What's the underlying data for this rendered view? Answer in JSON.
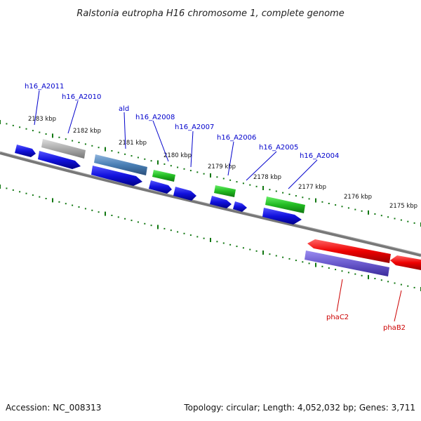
{
  "title": "Ralstonia eutropha H16 chromosome 1, complete genome",
  "footer": {
    "accession": "Accession: NC_008313",
    "topology": "Topology: circular; Length: 4,052,032 bp; Genes: 3,711"
  },
  "kbp_labels": [
    "2183 kbp",
    "2182 kbp",
    "2181 kbp",
    "2180 kbp",
    "2179 kbp",
    "2178 kbp",
    "2177 kbp",
    "2176 kbp",
    "2175 kbp"
  ],
  "gene_labels": [
    {
      "name": "h16_A2011",
      "color": "#0000cc"
    },
    {
      "name": "h16_A2010",
      "color": "#0000cc"
    },
    {
      "name": "ald",
      "color": "#0000cc"
    },
    {
      "name": "h16_A2008",
      "color": "#0000cc"
    },
    {
      "name": "h16_A2007",
      "color": "#0000cc"
    },
    {
      "name": "h16_A2006",
      "color": "#0000cc"
    },
    {
      "name": "h16_A2005",
      "color": "#0000cc"
    },
    {
      "name": "h16_A2004",
      "color": "#0000cc"
    },
    {
      "name": "phaC2",
      "color": "#cc0000"
    },
    {
      "name": "phaB2",
      "color": "#cc0000"
    }
  ],
  "colors": {
    "blue_gene": "#1111dd",
    "green_gene": "#22bb22",
    "steel_gene": "#4a7fb5",
    "gray_gene": "#aaaaaa",
    "red_gene": "#ee0000",
    "purple_gene": "#6a5acd",
    "backbone": "#777777",
    "tick": "#117711"
  }
}
